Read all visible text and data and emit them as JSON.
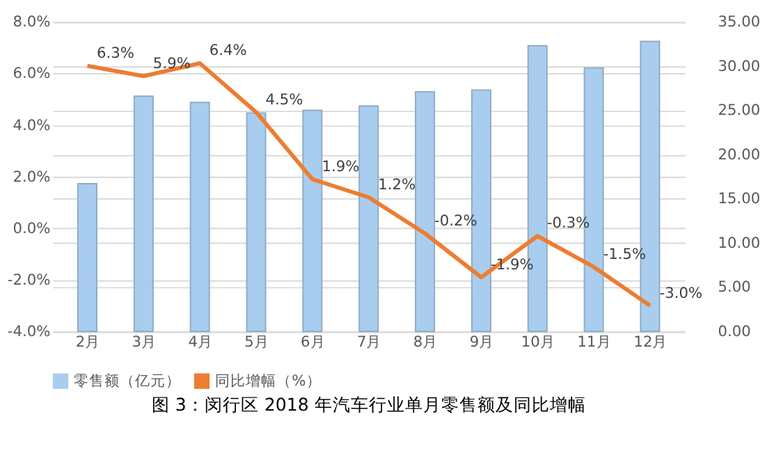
{
  "chart_data": {
    "type": "bar",
    "title": "图 3：闵行区 2018 年汽车行业单月零售额及同比增幅",
    "categories": [
      "2月",
      "3月",
      "4月",
      "5月",
      "6月",
      "7月",
      "8月",
      "9月",
      "10月",
      "11月",
      "12月"
    ],
    "series": [
      {
        "name": "零售额（亿元）",
        "axis": "y2",
        "color": "#a9cdef",
        "values": [
          16.7,
          26.6,
          25.9,
          24.7,
          25.0,
          25.5,
          27.1,
          27.3,
          32.3,
          29.8,
          32.8
        ]
      },
      {
        "name": "同比增幅（%）",
        "type": "line",
        "color": "#ed7d31",
        "values": [
          6.3,
          5.9,
          6.4,
          4.5,
          1.9,
          1.2,
          -0.2,
          -1.9,
          -0.3,
          -1.5,
          -3.0
        ],
        "value_labels": [
          "6.3%",
          "5.9%",
          "6.4%",
          "4.5%",
          "1.9%",
          "1.2%",
          "-0.2%",
          "-1.9%",
          "-0.3%",
          "-1.5%",
          "-3.0%"
        ]
      }
    ],
    "ylim": [
      -4,
      8
    ],
    "yticks": [
      {
        "value": -4,
        "label": "-4.0%"
      },
      {
        "value": -2,
        "label": "-2.0%"
      },
      {
        "value": 0,
        "label": "0.0%"
      },
      {
        "value": 2,
        "label": "2.0%"
      },
      {
        "value": 4,
        "label": "4.0%"
      },
      {
        "value": 6,
        "label": "6.0%"
      },
      {
        "value": 8,
        "label": "8.0%"
      }
    ],
    "y2lim": [
      0,
      35
    ],
    "y2ticks": [
      {
        "value": 0,
        "label": "0.00"
      },
      {
        "value": 5,
        "label": "5.00"
      },
      {
        "value": 10,
        "label": "10.00"
      },
      {
        "value": 15,
        "label": "15.00"
      },
      {
        "value": 20,
        "label": "20.00"
      },
      {
        "value": 25,
        "label": "25.00"
      },
      {
        "value": 30,
        "label": "30.00"
      },
      {
        "value": 35,
        "label": "35.00"
      }
    ],
    "grid": "y",
    "legend": "bottom",
    "marker": "none",
    "line_style": "solid"
  }
}
